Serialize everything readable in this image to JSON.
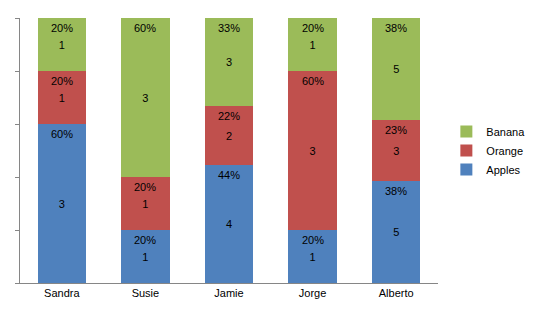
{
  "chart_data": {
    "type": "bar",
    "stacked": true,
    "data_labels": true,
    "tick_labels": "x",
    "grid": false,
    "legend": "right",
    "categories": [
      "Sandra",
      "Susie",
      "Jamie",
      "Jorge",
      "Alberto"
    ],
    "ylim": [
      0,
      100
    ],
    "yticks": [
      0,
      20,
      40,
      60,
      80,
      100
    ],
    "series": [
      {
        "name": "Apples",
        "color": "#4f81bd",
        "values": [
          60,
          20,
          44.44,
          20,
          38.46
        ],
        "value_labels": [
          "60%",
          "20%",
          "44%",
          "20%",
          "38%"
        ],
        "counts": [
          3,
          1,
          4,
          1,
          5
        ]
      },
      {
        "name": "Orange",
        "color": "#c0504d",
        "values": [
          20,
          20,
          22.22,
          60,
          23.08
        ],
        "value_labels": [
          "20%",
          "20%",
          "22%",
          "60%",
          "23%"
        ],
        "counts": [
          1,
          1,
          2,
          3,
          3
        ]
      },
      {
        "name": "Banana",
        "color": "#9bbb59",
        "values": [
          20,
          60,
          33.33,
          20,
          38.46
        ],
        "value_labels": [
          "20%",
          "60%",
          "33%",
          "20%",
          "38%"
        ],
        "counts": [
          1,
          3,
          3,
          1,
          5
        ]
      }
    ]
  }
}
